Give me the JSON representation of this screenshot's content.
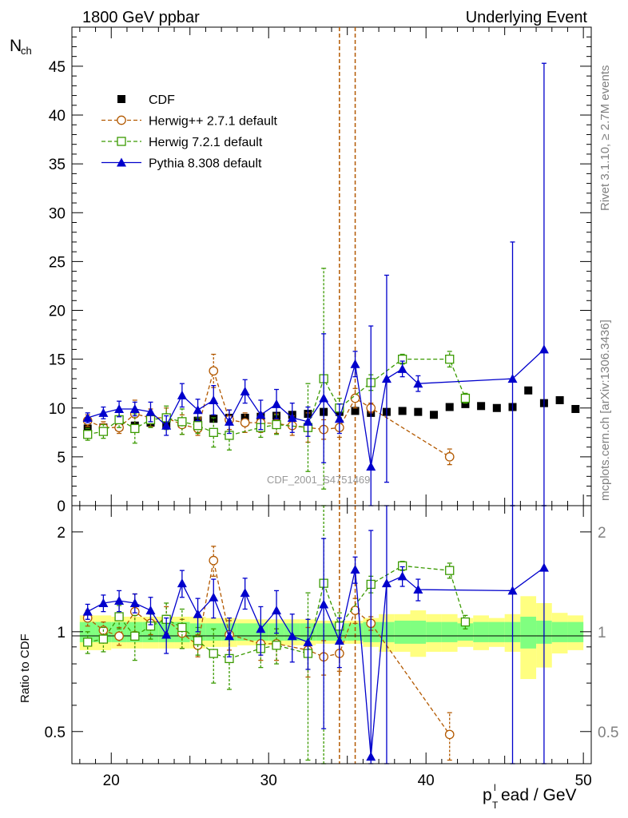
{
  "header": {
    "left": "1800 GeV ppbar",
    "right": "Underlying Event"
  },
  "side": {
    "rivet": "Rivet 3.1.10, ≥ 2.7M events",
    "mcplots": "mcplots.cern.ch [arXiv:1306.3436]"
  },
  "watermark": "CDF_2001_S4751469",
  "axes": {
    "top_ylabel_main": "N",
    "top_ylabel_sub": "ch",
    "bottom_ylabel": "Ratio to CDF",
    "xlabel_p": "p",
    "xlabel_sub": "T",
    "xlabel_sup": "l",
    "xlabel_rest": "ead / GeV"
  },
  "chart_data": [
    {
      "type": "scatter",
      "panel": "main",
      "xlim": [
        17.5,
        50.5
      ],
      "ylim": [
        0,
        49
      ],
      "xticks": [
        20,
        30,
        40,
        50
      ],
      "yticks": [
        0,
        5,
        10,
        15,
        20,
        25,
        30,
        35,
        40,
        45
      ],
      "legend_position": "top-left",
      "series": [
        {
          "name": "CDF",
          "color": "#000000",
          "marker": "square",
          "x": [
            18.5,
            19.5,
            20.5,
            21.5,
            22.5,
            23.5,
            24.5,
            25.5,
            26.5,
            27.5,
            28.5,
            29.5,
            30.5,
            31.5,
            32.5,
            33.5,
            34.5,
            35.5,
            36.5,
            37.5,
            38.5,
            39.5,
            40.5,
            41.5,
            42.5,
            43.5,
            44.5,
            45.5,
            46.5,
            47.5,
            48.5,
            49.5
          ],
          "y": [
            7.9,
            8.0,
            8.1,
            8.2,
            8.5,
            8.3,
            8.4,
            8.7,
            8.9,
            9.0,
            9.0,
            9.1,
            9.2,
            9.3,
            9.4,
            9.6,
            9.6,
            9.7,
            9.5,
            9.6,
            9.7,
            9.6,
            9.3,
            10.1,
            10.4,
            10.2,
            10.0,
            10.1,
            11.8,
            10.5,
            10.8,
            9.9
          ]
        },
        {
          "name": "Herwig++ 2.7.1 default",
          "color": "#b35900",
          "marker": "circle-open",
          "x": [
            18.5,
            19.5,
            20.5,
            21.5,
            22.5,
            23.5,
            24.5,
            25.5,
            26.5,
            27.5,
            28.5,
            29.5,
            30.5,
            31.5,
            32.5,
            33.5,
            34.5,
            35.5,
            36.5,
            41.5
          ],
          "y": [
            8.7,
            8.0,
            8.0,
            9.4,
            9.0,
            9.0,
            8.3,
            7.9,
            13.8,
            8.8,
            8.5,
            8.5,
            8.4,
            8.2,
            8.0,
            7.8,
            8.0,
            11.0,
            10.0,
            5.0
          ],
          "err": [
            0.6,
            0.6,
            0.6,
            1.4,
            0.9,
            1.0,
            1.0,
            0.7,
            1.7,
            1.0,
            1.0,
            1.0,
            1.0,
            1.0,
            1.5,
            1.0,
            1.0,
            1.0,
            0.5,
            0.8
          ]
        },
        {
          "name": "Herwig 7.2.1 default",
          "color": "#3a9a00",
          "marker": "square-open",
          "x": [
            18.5,
            19.5,
            20.5,
            21.5,
            22.5,
            23.5,
            24.5,
            25.5,
            26.5,
            27.5,
            29.5,
            30.5,
            32.5,
            33.5,
            34.5,
            36.5,
            38.5,
            41.5,
            42.5
          ],
          "y": [
            7.3,
            7.6,
            8.8,
            7.9,
            8.8,
            9.0,
            8.6,
            8.2,
            7.5,
            7.2,
            8.0,
            8.3,
            8.0,
            13.0,
            10.0,
            12.6,
            15.0,
            15.0,
            11.0
          ],
          "err": [
            0.6,
            0.7,
            0.8,
            1.5,
            0.8,
            1.2,
            1.3,
            0.8,
            1.5,
            1.5,
            1.0,
            1.0,
            4.5,
            11.3,
            1.0,
            0.8,
            0.5,
            0.8,
            0.5
          ]
        },
        {
          "name": "Pythia 8.308 default",
          "color": "#0000cc",
          "marker": "triangle",
          "x": [
            18.5,
            19.5,
            20.5,
            21.5,
            22.5,
            23.5,
            24.5,
            25.5,
            26.5,
            27.5,
            28.5,
            29.5,
            30.5,
            31.5,
            32.5,
            33.5,
            34.5,
            35.5,
            36.5,
            37.5,
            38.5,
            39.5,
            45.5,
            47.5
          ],
          "y": [
            9.0,
            9.5,
            9.9,
            9.9,
            9.6,
            8.2,
            11.3,
            9.8,
            10.8,
            8.6,
            11.7,
            9.3,
            10.4,
            9.0,
            8.6,
            11.0,
            8.9,
            14.5,
            4.0,
            13.0,
            14.0,
            12.5,
            13.0,
            16.0
          ],
          "err": [
            0.5,
            0.6,
            0.8,
            0.7,
            1.0,
            1.0,
            1.2,
            1.1,
            1.5,
            1.2,
            1.2,
            1.5,
            1.5,
            1.5,
            1.5,
            6.6,
            1.5,
            1.3,
            14.4,
            10.6,
            0.8,
            0.8,
            14.0,
            29.3
          ]
        }
      ],
      "vlines": [
        {
          "x": 34.5,
          "color": "#b35900",
          "style": "dashed"
        },
        {
          "x": 35.5,
          "color": "#b35900",
          "style": "dashed"
        }
      ]
    },
    {
      "type": "scatter",
      "panel": "ratio",
      "ylabel": "Ratio to CDF",
      "ylim": [
        0.4,
        2.4
      ],
      "yticks": [
        0.5,
        1,
        2
      ],
      "log_scale": true,
      "reference_line": 1,
      "uncertainty_bands": {
        "x": [
          18.5,
          19.5,
          20.5,
          21.5,
          22.5,
          23.5,
          24.5,
          25.5,
          26.5,
          27.5,
          28.5,
          29.5,
          30.5,
          31.5,
          32.5,
          33.5,
          34.5,
          35.5,
          36.5,
          37.5,
          38.5,
          39.5,
          40.5,
          41.5,
          42.5,
          43.5,
          44.5,
          45.5,
          46.5,
          47.5,
          48.5,
          49.5
        ],
        "inner": [
          0.07,
          0.07,
          0.07,
          0.07,
          0.07,
          0.07,
          0.07,
          0.06,
          0.06,
          0.06,
          0.06,
          0.06,
          0.06,
          0.06,
          0.06,
          0.06,
          0.06,
          0.06,
          0.07,
          0.07,
          0.08,
          0.08,
          0.07,
          0.07,
          0.06,
          0.07,
          0.07,
          0.07,
          0.11,
          0.08,
          0.07,
          0.07
        ],
        "outer": [
          0.12,
          0.12,
          0.11,
          0.11,
          0.11,
          0.11,
          0.11,
          0.11,
          0.1,
          0.1,
          0.09,
          0.09,
          0.09,
          0.09,
          0.09,
          0.08,
          0.08,
          0.08,
          0.1,
          0.13,
          0.13,
          0.16,
          0.13,
          0.13,
          0.1,
          0.12,
          0.1,
          0.13,
          0.28,
          0.22,
          0.14,
          0.12
        ],
        "colors": {
          "inner": "#80ff80",
          "outer": "#ffff80"
        }
      },
      "series": [
        {
          "name": "Herwig++ 2.7.1 default",
          "color": "#b35900",
          "marker": "circle-open",
          "x": [
            18.5,
            19.5,
            20.5,
            21.5,
            22.5,
            23.5,
            24.5,
            25.5,
            26.5,
            27.5,
            29.5,
            30.5,
            32.5,
            33.5,
            34.5,
            35.5,
            36.5,
            41.5
          ],
          "y": [
            1.1,
            1.01,
            0.97,
            1.15,
            1.06,
            1.09,
            0.99,
            0.91,
            1.64,
            0.98,
            0.92,
            0.92,
            0.88,
            0.84,
            0.86,
            1.16,
            1.06,
            0.49
          ],
          "err": [
            0.06,
            0.06,
            0.06,
            0.15,
            0.08,
            0.1,
            0.1,
            0.07,
            0.17,
            0.1,
            0.1,
            0.1,
            0.15,
            0.1,
            0.1,
            0.1,
            0.05,
            0.08
          ]
        },
        {
          "name": "Herwig 7.2.1 default",
          "color": "#3a9a00",
          "marker": "square-open",
          "x": [
            18.5,
            19.5,
            20.5,
            21.5,
            22.5,
            23.5,
            24.5,
            25.5,
            26.5,
            27.5,
            29.5,
            30.5,
            32.5,
            33.5,
            34.5,
            36.5,
            38.5,
            41.5,
            42.5
          ],
          "y": [
            0.93,
            0.95,
            1.11,
            0.97,
            1.04,
            1.09,
            1.03,
            0.94,
            0.86,
            0.83,
            0.89,
            0.91,
            0.86,
            1.4,
            1.04,
            1.39,
            1.58,
            1.53,
            1.07
          ],
          "err": [
            0.07,
            0.08,
            0.09,
            0.15,
            0.09,
            0.13,
            0.14,
            0.09,
            0.16,
            0.16,
            0.11,
            0.11,
            0.45,
            1.2,
            0.1,
            0.08,
            0.05,
            0.08,
            0.05
          ]
        },
        {
          "name": "Pythia 8.308 default",
          "color": "#0000cc",
          "marker": "triangle",
          "x": [
            18.5,
            19.5,
            20.5,
            21.5,
            22.5,
            23.5,
            24.5,
            25.5,
            26.5,
            27.5,
            28.5,
            29.5,
            30.5,
            31.5,
            32.5,
            33.5,
            34.5,
            35.5,
            36.5,
            37.5,
            38.5,
            39.5,
            45.5,
            47.5
          ],
          "y": [
            1.15,
            1.22,
            1.24,
            1.22,
            1.16,
            0.98,
            1.4,
            1.13,
            1.27,
            0.97,
            1.31,
            1.02,
            1.16,
            0.97,
            0.93,
            1.21,
            0.94,
            1.54,
            0.42,
            1.4,
            1.47,
            1.34,
            1.33,
            1.56
          ],
          "err": [
            0.06,
            0.07,
            0.09,
            0.08,
            0.11,
            0.12,
            0.13,
            0.13,
            0.17,
            0.13,
            0.14,
            0.17,
            0.17,
            0.16,
            0.16,
            0.7,
            0.16,
            0.14,
            1.6,
            1.1,
            0.1,
            0.1,
            1.4,
            2.8
          ]
        }
      ]
    }
  ]
}
